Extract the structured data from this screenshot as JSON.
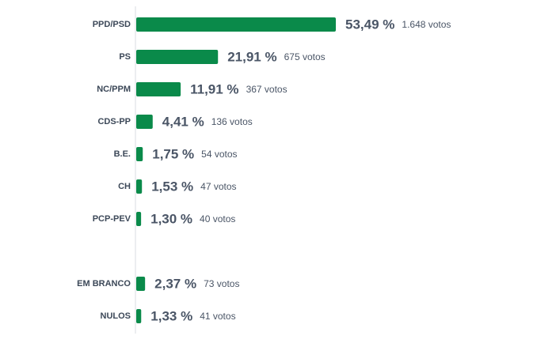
{
  "chart_data": {
    "type": "bar",
    "orientation": "horizontal",
    "color": "#0a8a4a",
    "categories": [
      "PPD/PSD",
      "PS",
      "NC/PPM",
      "CDS-PP",
      "B.E.",
      "CH",
      "PCP-PEV",
      null,
      "EM BRANCO",
      "NULOS"
    ],
    "values": [
      53.49,
      21.91,
      11.91,
      4.41,
      1.75,
      1.53,
      1.3,
      null,
      2.37,
      1.33
    ],
    "value_labels": [
      "53,49 %",
      "21,91 %",
      "11,91 %",
      "4,41 %",
      "1,75 %",
      "1,53 %",
      "1,30 %",
      null,
      "2,37 %",
      "1,33 %"
    ],
    "vote_labels": [
      "1.648 votos",
      "675 votos",
      "367 votos",
      "136 votos",
      "54 votos",
      "47 votos",
      "40 votos",
      null,
      "73 votos",
      "41 votos"
    ]
  }
}
